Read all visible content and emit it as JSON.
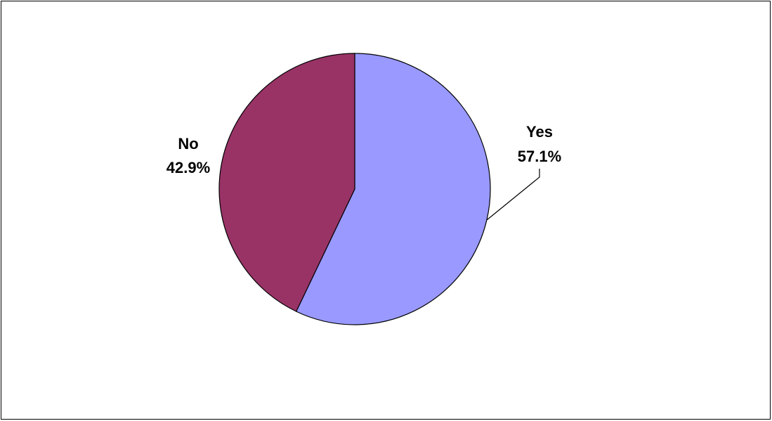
{
  "chart_data": {
    "type": "pie",
    "title": "",
    "start_angle_deg": 0,
    "direction": "clockwise",
    "slices": [
      {
        "label": "Yes",
        "value": 57.1,
        "value_label": "57.1%",
        "color": "#9999ff"
      },
      {
        "label": "No",
        "value": 42.9,
        "value_label": "42.9%",
        "color": "#993366"
      }
    ],
    "legend": "none"
  }
}
